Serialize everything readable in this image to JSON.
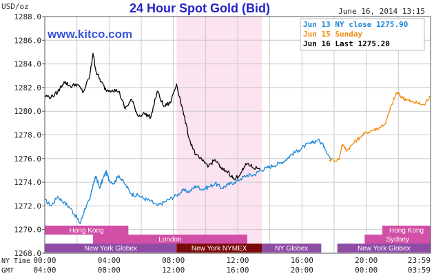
{
  "chart_data": {
    "type": "line",
    "title": "24 Hour Spot Gold (Bid)",
    "ylabel": "USD/oz",
    "watermark": "www.kitco.com",
    "date_stamp": "June 16, 2014 13:15",
    "ylim": [
      1268.0,
      1288.0
    ],
    "yticks": [
      "1268.0",
      "1270.0",
      "1272.0",
      "1274.0",
      "1276.0",
      "1278.0",
      "1280.0",
      "1282.0",
      "1284.0",
      "1286.0",
      "1288.0"
    ],
    "ytick_values": [
      1268,
      1270,
      1272,
      1274,
      1276,
      1278,
      1280,
      1282,
      1284,
      1286,
      1288
    ],
    "x_range_ny_hours": [
      0,
      24
    ],
    "time_rows": [
      {
        "label": "NY Time",
        "ticks": [
          "00:00",
          "04:00",
          "08:00",
          "12:00",
          "16:00",
          "20:00",
          "23:59"
        ]
      },
      {
        "label": "GMT",
        "ticks": [
          "04:00",
          "08:00",
          "12:00",
          "16:00",
          "20:00",
          "00:00",
          "03:59"
        ]
      }
    ],
    "tick_hours": [
      0,
      4,
      8,
      12,
      16,
      20,
      24
    ],
    "highlight_band_ny_hours": [
      8.2,
      13.5
    ],
    "legend": [
      {
        "name": "Jun 13 NY close 1275.90",
        "color": "#1a86d8"
      },
      {
        "name": "Jun 15 Sunday",
        "color": "#f08c10"
      },
      {
        "name": "Jun 16 Last 1275.20",
        "color": "#000000"
      }
    ],
    "series": [
      {
        "name": "Jun 13 NY close 1275.90",
        "color": "#1a86d8",
        "x": [
          0,
          0.4,
          0.8,
          1.2,
          1.6,
          2.0,
          2.2,
          2.5,
          2.8,
          3.0,
          3.2,
          3.4,
          3.6,
          3.8,
          4.0,
          4.3,
          4.6,
          5.0,
          5.4,
          5.8,
          6.2,
          6.6,
          7.0,
          7.4,
          7.8,
          8.2,
          8.6,
          9.0,
          9.4,
          9.8,
          10.2,
          10.6,
          11.0,
          11.4,
          11.8,
          12.2,
          12.6,
          13.0,
          13.4,
          13.8,
          14.2,
          14.6,
          15.0,
          15.4,
          15.8,
          16.2,
          16.6,
          17.0,
          17.4,
          17.8
        ],
        "y": [
          1272.5,
          1272.0,
          1272.8,
          1272.3,
          1271.8,
          1271.0,
          1270.5,
          1271.8,
          1272.5,
          1273.8,
          1274.5,
          1273.5,
          1274.2,
          1274.9,
          1274.2,
          1273.9,
          1274.6,
          1273.8,
          1273.0,
          1272.9,
          1272.6,
          1272.4,
          1272.0,
          1272.3,
          1272.6,
          1272.9,
          1273.3,
          1273.2,
          1273.7,
          1273.4,
          1273.6,
          1273.9,
          1273.5,
          1273.8,
          1274.0,
          1274.3,
          1274.6,
          1274.6,
          1275.0,
          1275.2,
          1275.4,
          1275.6,
          1275.9,
          1276.4,
          1276.7,
          1277.1,
          1277.3,
          1277.6,
          1277.0,
          1275.9
        ]
      },
      {
        "name": "Jun 15 Sunday",
        "color": "#f08c10",
        "x": [
          17.7,
          18.3,
          18.5,
          18.8,
          19.2,
          19.6,
          20.0,
          20.4,
          20.8,
          21.2,
          21.6,
          21.9,
          22.2,
          22.5,
          22.8,
          23.2,
          23.6,
          23.95
        ],
        "y": [
          1275.9,
          1275.9,
          1277.2,
          1276.7,
          1277.3,
          1277.8,
          1278.2,
          1278.4,
          1278.6,
          1279.0,
          1280.6,
          1281.6,
          1281.2,
          1281.0,
          1280.8,
          1280.7,
          1280.5,
          1281.3
        ]
      },
      {
        "name": "Jun 16 Last 1275.20",
        "color": "#000000",
        "x": [
          0,
          0.4,
          0.8,
          1.2,
          1.6,
          2.0,
          2.4,
          2.8,
          3.0,
          3.2,
          3.5,
          3.8,
          4.2,
          4.6,
          5.0,
          5.4,
          5.8,
          6.2,
          6.6,
          7.0,
          7.4,
          7.8,
          8.2,
          8.6,
          9.0,
          9.4,
          9.8,
          10.2,
          10.6,
          11.0,
          11.4,
          11.8,
          12.2,
          12.6,
          13.0,
          13.4
        ],
        "y": [
          1281.3,
          1281.2,
          1281.6,
          1282.5,
          1282.1,
          1282.3,
          1281.6,
          1283.0,
          1284.9,
          1283.3,
          1282.5,
          1281.8,
          1281.8,
          1281.7,
          1280.2,
          1281.0,
          1279.6,
          1279.8,
          1279.5,
          1281.7,
          1280.4,
          1280.7,
          1282.3,
          1280.0,
          1277.6,
          1276.3,
          1275.8,
          1275.4,
          1275.9,
          1275.1,
          1274.9,
          1274.2,
          1274.8,
          1275.6,
          1275.2,
          1275.2
        ]
      }
    ],
    "market_sessions": [
      {
        "name": "Hong Kong",
        "start": 0,
        "end": 5.2,
        "color": "#d14fa6",
        "row": 1
      },
      {
        "name": "London",
        "start": 3,
        "end": 12.6,
        "color": "#d14fa6",
        "row": 2
      },
      {
        "name": "New York Globex",
        "start": 0,
        "end": 8.2,
        "color": "#8e4ca5",
        "row": 3
      },
      {
        "name": "New York NYMEX",
        "start": 8.2,
        "end": 13.5,
        "color": "#7a0a0a",
        "row": 3
      },
      {
        "name": "NY Globex",
        "start": 13.5,
        "end": 17.2,
        "color": "#8e4ca5",
        "row": 3
      },
      {
        "name": "Sydney",
        "start": 19.9,
        "end": 24,
        "color": "#d14fa6",
        "row": 2
      },
      {
        "name": "Hong Kong",
        "start": 21.0,
        "end": 24,
        "color": "#d14fa6",
        "row": 1
      },
      {
        "name": "New York Globex",
        "start": 18.2,
        "end": 24,
        "color": "#8e4ca5",
        "row": 3
      }
    ]
  }
}
